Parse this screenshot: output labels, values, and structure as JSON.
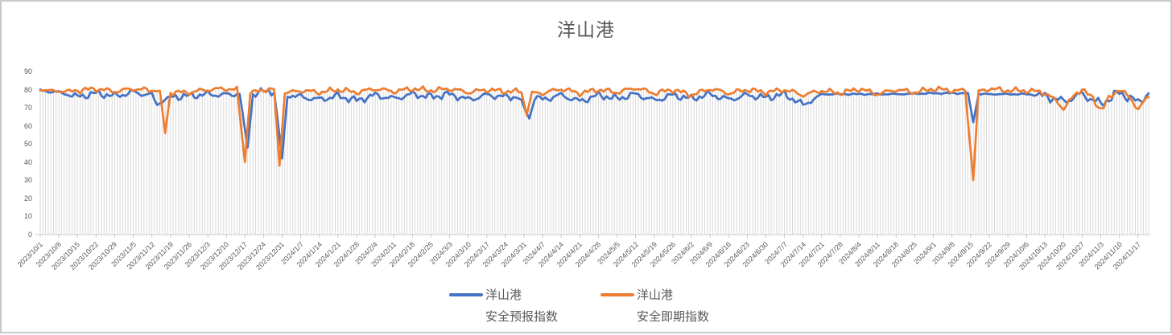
{
  "chart_data": {
    "type": "line",
    "title": "洋山港",
    "ylim": [
      0,
      90
    ],
    "y_ticks": [
      0,
      10,
      20,
      30,
      40,
      50,
      60,
      70,
      80,
      90
    ],
    "x_tick_labels": [
      "2023/10/1",
      "2023/10/8",
      "2023/10/15",
      "2023/10/22",
      "2023/10/29",
      "2023/11/5",
      "2023/11/12",
      "2023/11/19",
      "2023/11/26",
      "2023/12/3",
      "2023/12/10",
      "2023/12/17",
      "2023/12/24",
      "2023/12/31",
      "2024/1/7",
      "2024/1/14",
      "2024/1/21",
      "2024/1/28",
      "2024/2/4",
      "2024/2/11",
      "2024/2/18",
      "2024/2/25",
      "2024/3/3",
      "2024/3/10",
      "2024/3/17",
      "2024/3/24",
      "2024/3/31",
      "2024/4/7",
      "2024/4/14",
      "2024/4/21",
      "2024/4/28",
      "2024/5/5",
      "2024/5/12",
      "2024/5/19",
      "2024/5/26",
      "2024/6/2",
      "2024/6/9",
      "2024/6/16",
      "2024/6/23",
      "2024/6/30",
      "2024/7/7",
      "2024/7/14",
      "2024/7/21",
      "2024/7/28",
      "2024/8/4",
      "2024/8/11",
      "2024/8/18",
      "2024/8/25",
      "2024/9/1",
      "2024/9/8",
      "2024/9/15",
      "2024/9/22",
      "2024/9/29",
      "2024/10/6",
      "2024/10/13",
      "2024/10/20",
      "2024/10/27",
      "2024/11/3",
      "2024/11/10",
      "2024/11/17"
    ],
    "x_tick_interval_days": 7,
    "total_days": 417,
    "dip_days": [
      44,
      47,
      77,
      78,
      90,
      91,
      183,
      184,
      351
    ],
    "series": [
      {
        "name_line1": "洋山港",
        "name_line2": "安全预报指数",
        "color": "#4472C4",
        "noise_amp": 2.3,
        "noise_seed": 1.7,
        "noise_scale_ranges": [
          {
            "from": 0,
            "to": 12,
            "f": 0.5
          },
          {
            "from": 292,
            "to": 376,
            "f": 0.2
          },
          {
            "from": 376,
            "to": 418,
            "f": 1.3
          }
        ],
        "anchors": [
          [
            0,
            79.5
          ],
          [
            7,
            78.5
          ],
          [
            14,
            76
          ],
          [
            21,
            78
          ],
          [
            28,
            76.5
          ],
          [
            35,
            78.5
          ],
          [
            42,
            77
          ],
          [
            44,
            71.5
          ],
          [
            47,
            74.5
          ],
          [
            49,
            76
          ],
          [
            56,
            76.5
          ],
          [
            63,
            77.5
          ],
          [
            70,
            77
          ],
          [
            75,
            78
          ],
          [
            78,
            48
          ],
          [
            80,
            77.5
          ],
          [
            84,
            79
          ],
          [
            88,
            79
          ],
          [
            91,
            42
          ],
          [
            93,
            77
          ],
          [
            98,
            76
          ],
          [
            105,
            74.5
          ],
          [
            112,
            76.5
          ],
          [
            119,
            74
          ],
          [
            126,
            77
          ],
          [
            133,
            75
          ],
          [
            140,
            77.5
          ],
          [
            147,
            76
          ],
          [
            154,
            77.5
          ],
          [
            161,
            74.5
          ],
          [
            168,
            77
          ],
          [
            175,
            76
          ],
          [
            180,
            76
          ],
          [
            184,
            64
          ],
          [
            186,
            75.5
          ],
          [
            189,
            74.5
          ],
          [
            196,
            77
          ],
          [
            203,
            73.5
          ],
          [
            210,
            77
          ],
          [
            217,
            75
          ],
          [
            224,
            77.5
          ],
          [
            231,
            74
          ],
          [
            238,
            77
          ],
          [
            245,
            75
          ],
          [
            252,
            77.5
          ],
          [
            259,
            74.5
          ],
          [
            266,
            77
          ],
          [
            273,
            75.5
          ],
          [
            280,
            77.5
          ],
          [
            287,
            71.5
          ],
          [
            294,
            77.5
          ],
          [
            308,
            77.5
          ],
          [
            322,
            77.5
          ],
          [
            336,
            78
          ],
          [
            349,
            78
          ],
          [
            351,
            62
          ],
          [
            353,
            77.5
          ],
          [
            364,
            77.5
          ],
          [
            371,
            77.5
          ],
          [
            378,
            76.5
          ],
          [
            385,
            73.5
          ],
          [
            392,
            77.5
          ],
          [
            399,
            72
          ],
          [
            406,
            78.5
          ],
          [
            413,
            73
          ],
          [
            417,
            78
          ]
        ]
      },
      {
        "name_line1": "洋山港",
        "name_line2": "安全即期指数",
        "color": "#ED7D31",
        "noise_amp": 1.7,
        "noise_seed": 4.2,
        "noise_scale_ranges": [
          {
            "from": 0,
            "to": 12,
            "f": 0.5
          },
          {
            "from": 376,
            "to": 418,
            "f": 1.3
          }
        ],
        "anchors": [
          [
            0,
            80
          ],
          [
            7,
            79
          ],
          [
            14,
            79.5
          ],
          [
            21,
            80.5
          ],
          [
            28,
            79
          ],
          [
            35,
            80.5
          ],
          [
            42,
            79.5
          ],
          [
            45,
            79
          ],
          [
            47,
            56
          ],
          [
            49,
            78.5
          ],
          [
            56,
            78.5
          ],
          [
            63,
            80
          ],
          [
            70,
            80.5
          ],
          [
            74,
            80
          ],
          [
            77,
            40
          ],
          [
            79,
            78
          ],
          [
            84,
            80
          ],
          [
            88,
            80
          ],
          [
            90,
            38
          ],
          [
            92,
            78
          ],
          [
            98,
            79.5
          ],
          [
            105,
            78.5
          ],
          [
            112,
            80
          ],
          [
            119,
            78.5
          ],
          [
            126,
            80.5
          ],
          [
            133,
            79
          ],
          [
            140,
            80.5
          ],
          [
            147,
            79.5
          ],
          [
            154,
            80.5
          ],
          [
            161,
            78.5
          ],
          [
            168,
            80
          ],
          [
            175,
            79
          ],
          [
            181,
            79
          ],
          [
            183,
            66
          ],
          [
            185,
            78.5
          ],
          [
            189,
            78
          ],
          [
            196,
            80.5
          ],
          [
            203,
            78
          ],
          [
            210,
            80
          ],
          [
            217,
            78.5
          ],
          [
            224,
            81
          ],
          [
            231,
            78
          ],
          [
            238,
            80
          ],
          [
            245,
            77
          ],
          [
            252,
            80.5
          ],
          [
            259,
            78
          ],
          [
            266,
            80
          ],
          [
            273,
            78.5
          ],
          [
            280,
            80
          ],
          [
            287,
            77
          ],
          [
            294,
            79.5
          ],
          [
            301,
            78
          ],
          [
            308,
            80.5
          ],
          [
            315,
            77.5
          ],
          [
            322,
            80
          ],
          [
            329,
            78.5
          ],
          [
            336,
            80.5
          ],
          [
            343,
            79.5
          ],
          [
            348,
            79.5
          ],
          [
            351,
            30
          ],
          [
            353,
            79
          ],
          [
            357,
            80.5
          ],
          [
            364,
            79.5
          ],
          [
            371,
            79.5
          ],
          [
            378,
            78.5
          ],
          [
            385,
            70
          ],
          [
            392,
            81
          ],
          [
            399,
            69.5
          ],
          [
            406,
            81
          ],
          [
            413,
            70
          ],
          [
            417,
            75.5
          ]
        ]
      }
    ],
    "colors": {
      "dropline": "#d9d9d9",
      "axis": "#c9c9c9",
      "text": "#595959"
    },
    "grid": "per-day vertical droplines, no horizontal gridlines",
    "legend_position": "bottom-center"
  }
}
